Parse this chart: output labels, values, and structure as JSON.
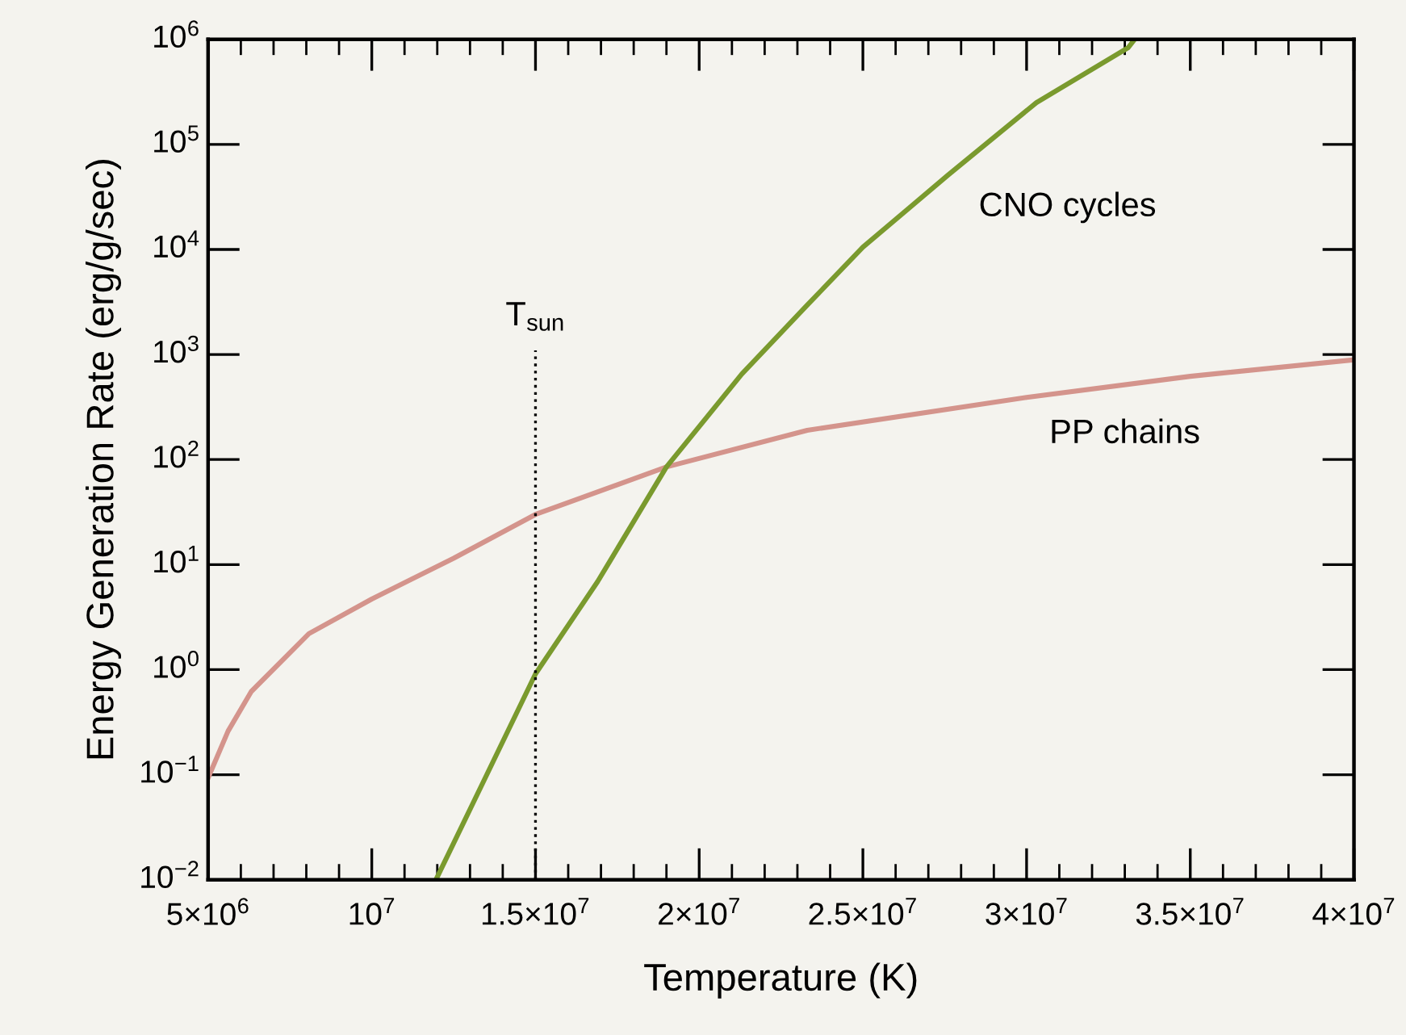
{
  "chart_data": {
    "type": "line",
    "xlabel": "Temperature (K)",
    "ylabel": "Energy Generation Rate (erg/g/sec)",
    "log": "y",
    "xlim": [
      5000000,
      40000000
    ],
    "xticks": [
      {
        "value": 5000000,
        "label": "5×10$^{6}$"
      },
      {
        "value": 10000000,
        "label": "10$^{7}$"
      },
      {
        "value": 15000000,
        "label": "1.5×10$^{7}$"
      },
      {
        "value": 20000000,
        "label": "2×10$^{7}$"
      },
      {
        "value": 25000000,
        "label": "2.5×10$^{7}$"
      },
      {
        "value": 30000000,
        "label": "3×10$^{7}$"
      },
      {
        "value": 35000000,
        "label": "3.5×10$^{7}$"
      },
      {
        "value": 40000000,
        "label": "4×10$^{7}$"
      }
    ],
    "ylim": [
      0.01,
      1000000
    ],
    "yticks": [
      {
        "value": 0.01,
        "label": "10$^{−2}$"
      },
      {
        "value": 0.1,
        "label": "10$^{−1}$"
      },
      {
        "value": 1,
        "label": "10$^{0}$"
      },
      {
        "value": 10,
        "label": "10$^{1}$"
      },
      {
        "value": 100,
        "label": "10$^{2}$"
      },
      {
        "value": 1000,
        "label": "10$^{3}$"
      },
      {
        "value": 10000,
        "label": "10$^{4}$"
      },
      {
        "value": 100000,
        "label": "10$^{5}$"
      },
      {
        "value": 1000000,
        "label": "10$^{6}$"
      }
    ],
    "grid": false,
    "legend": false,
    "marker": "none",
    "line_style": "solid",
    "series": [
      {
        "name": "PP chains",
        "color": "#d4948c",
        "x": [
          5000000,
          5610000,
          6320000,
          8080000,
          10000000,
          12500000,
          15000000,
          19000000,
          23300000,
          30000000,
          35000000,
          40000000
        ],
        "values": [
          0.093,
          0.26,
          0.62,
          2.2,
          4.7,
          11.5,
          30,
          85,
          190,
          390,
          620,
          890
        ]
      },
      {
        "name": "CNO cycles",
        "color": "#7a9a2e",
        "x": [
          11960000,
          13370000,
          15000000,
          16900000,
          19000000,
          21300000,
          23300000,
          25000000,
          27600000,
          30300000,
          33100000,
          33300000
        ],
        "values": [
          0.01,
          0.081,
          0.91,
          6.9,
          85,
          650,
          2950,
          10500,
          51000,
          250000,
          830000,
          1000000
        ]
      }
    ],
    "ref_lines": [
      {
        "axis": "x",
        "value": 15000000,
        "label": "T$_{sun}$",
        "color": "#000000",
        "line_style": "dotted"
      }
    ]
  }
}
